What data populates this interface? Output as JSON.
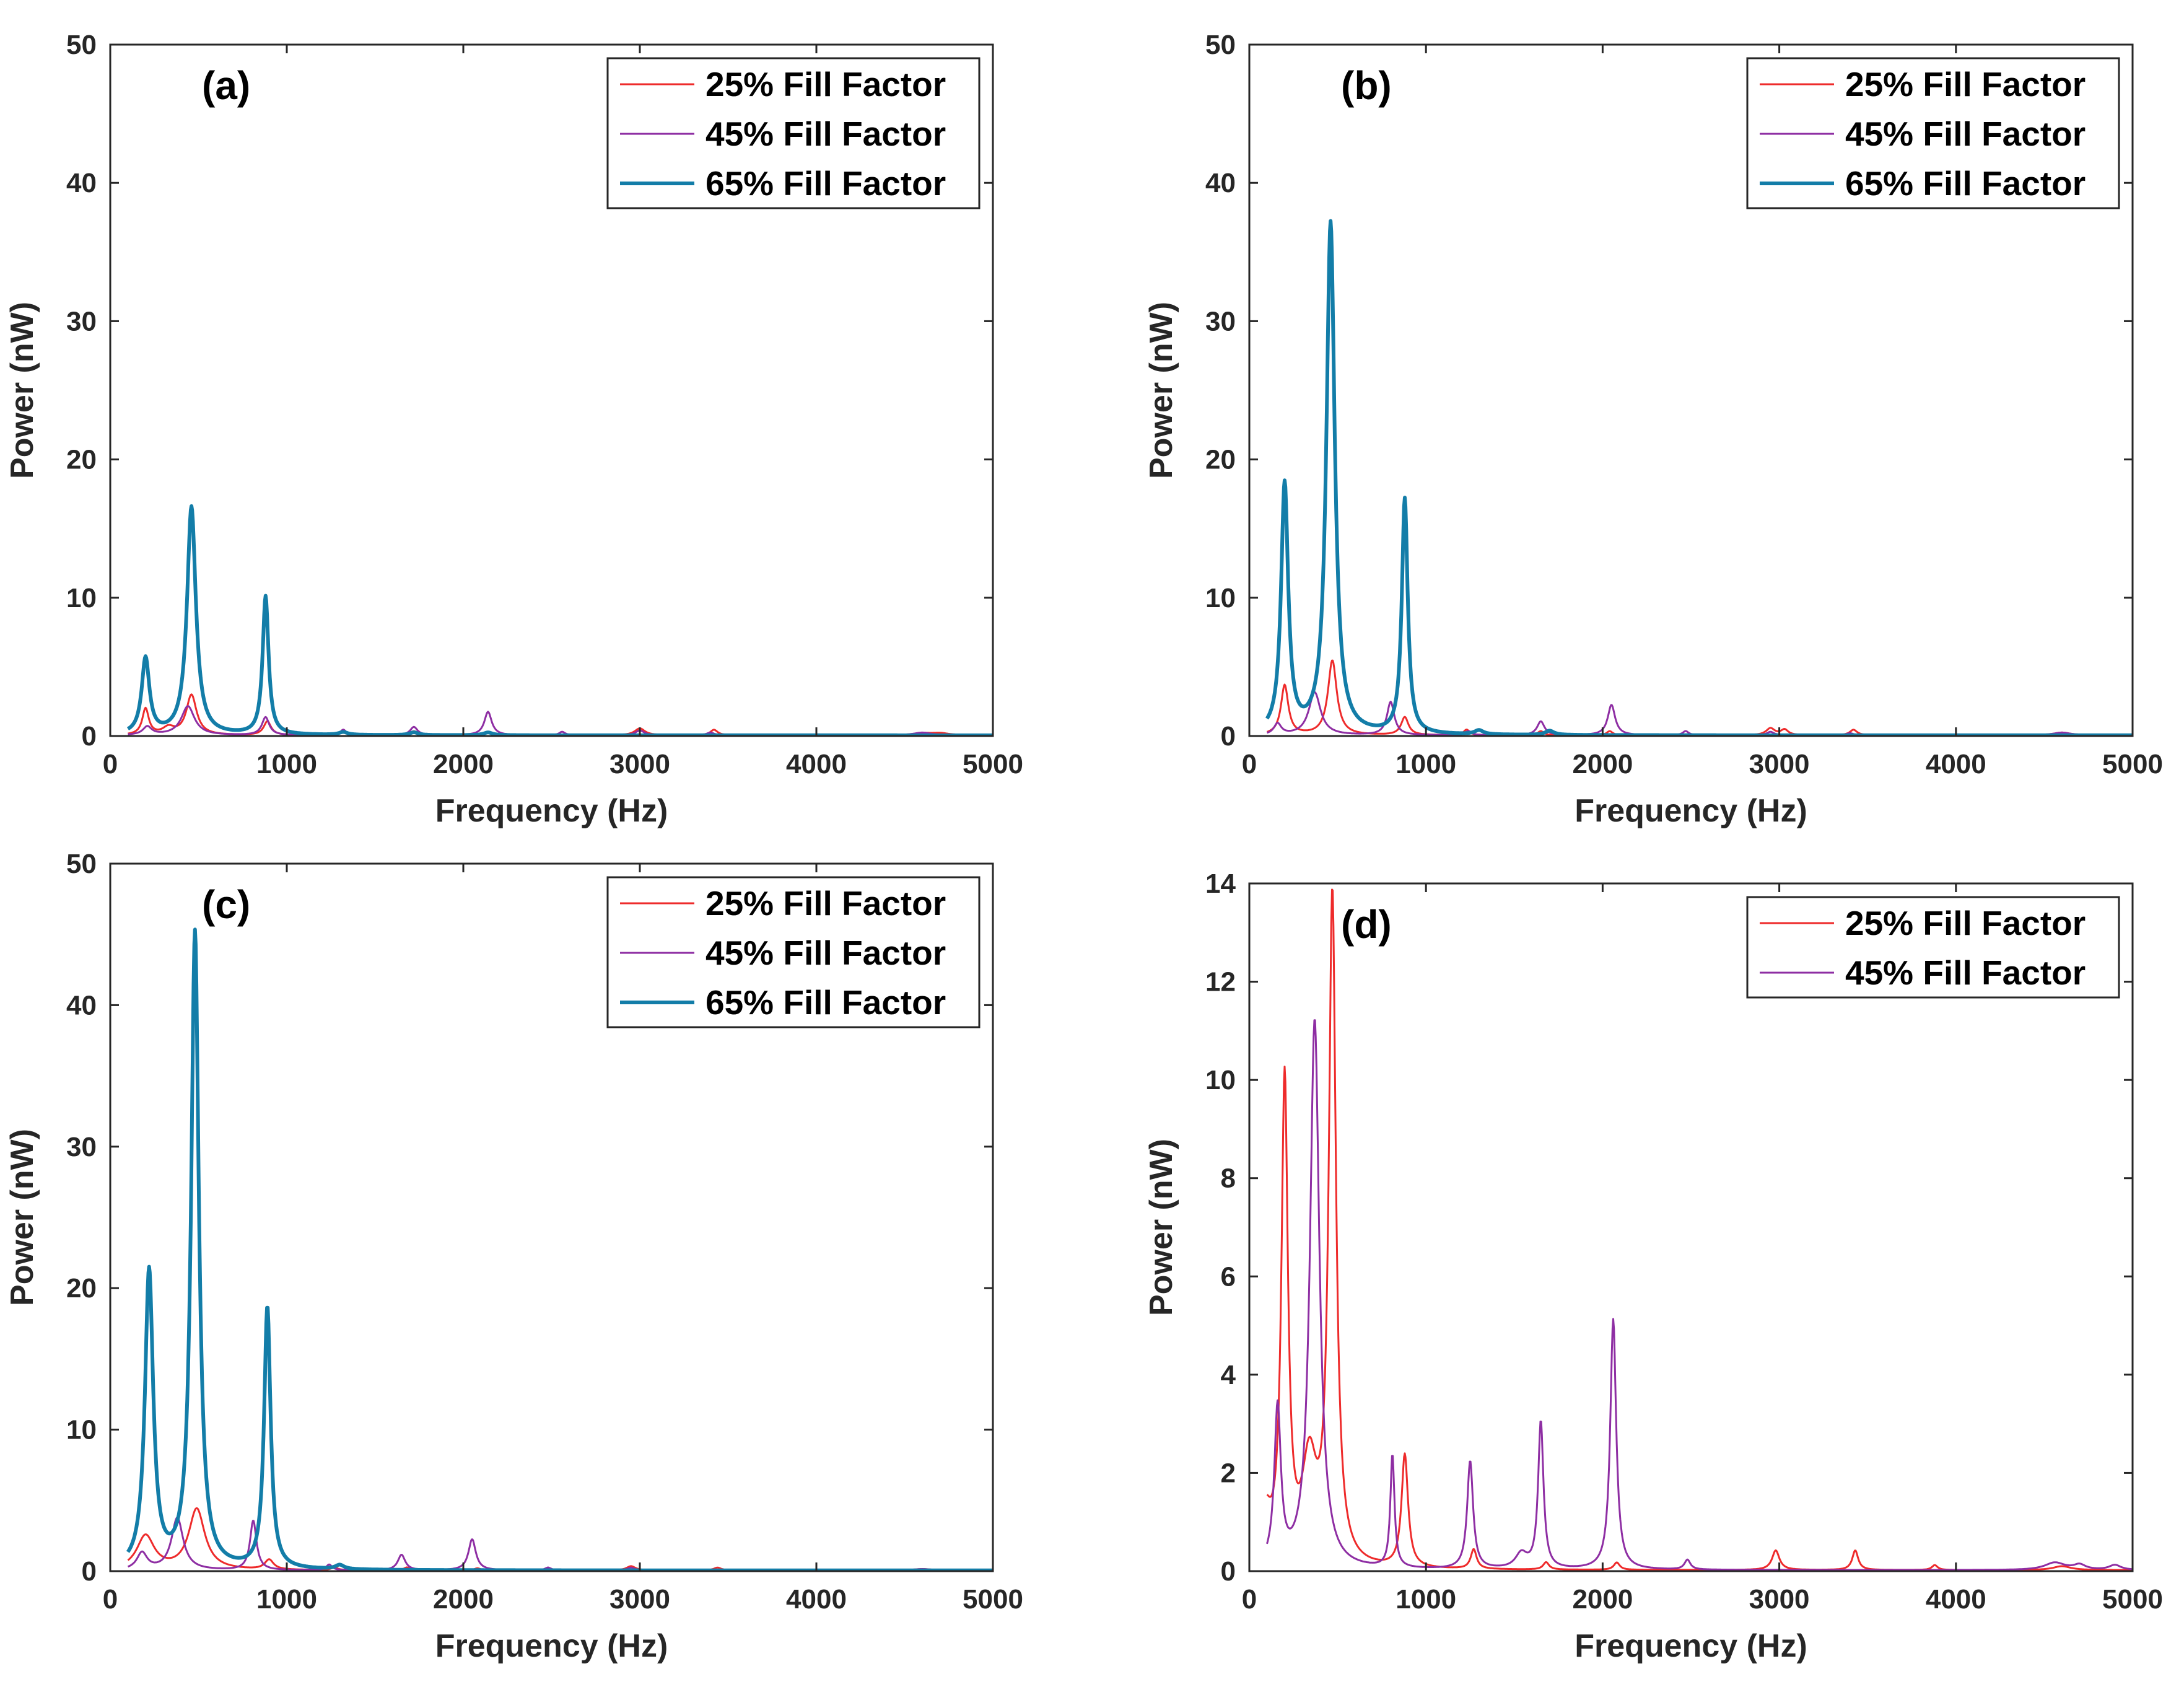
{
  "colors": {
    "ff25": "#ee2b2b",
    "ff45": "#8e2ea3",
    "ff65": "#137da8",
    "axis": "#262626",
    "text": "#000000",
    "background": "#ffffff"
  },
  "chart_data": [
    {
      "type": "line",
      "panel_label": "(a)",
      "xlabel": "Frequency (Hz)",
      "ylabel": "Power (nW)",
      "xlim": [
        0,
        5000
      ],
      "ylim": [
        0,
        50
      ],
      "xticks": [
        0,
        1000,
        2000,
        3000,
        4000,
        5000
      ],
      "yticks": [
        0,
        10,
        20,
        30,
        40,
        50
      ],
      "legend_position": "top-right",
      "series": [
        {
          "name": "25% Fill Factor",
          "color_key": "ff25",
          "width": 3,
          "baseline": 0.05,
          "peaks": [
            [
              200,
              1.9,
              22
            ],
            [
              330,
              0.5,
              40
            ],
            [
              460,
              2.9,
              35
            ],
            [
              890,
              1.0,
              25
            ],
            [
              1320,
              0.3,
              20
            ],
            [
              1720,
              0.3,
              25
            ],
            [
              2140,
              0.2,
              25
            ],
            [
              3000,
              0.5,
              35
            ],
            [
              3420,
              0.4,
              25
            ],
            [
              4600,
              0.15,
              60
            ],
            [
              4700,
              0.15,
              60
            ]
          ]
        },
        {
          "name": "45% Fill Factor",
          "color_key": "ff45",
          "width": 3,
          "baseline": 0.05,
          "peaks": [
            [
              210,
              0.6,
              30
            ],
            [
              440,
              2.1,
              45
            ],
            [
              880,
              1.3,
              25
            ],
            [
              1320,
              0.4,
              20
            ],
            [
              1720,
              0.6,
              25
            ],
            [
              2140,
              1.7,
              25
            ],
            [
              2560,
              0.25,
              20
            ],
            [
              3000,
              0.35,
              30
            ],
            [
              3400,
              0.2,
              25
            ],
            [
              4600,
              0.2,
              60
            ]
          ]
        },
        {
          "name": "65% Fill Factor",
          "color_key": "ff65",
          "width": 6,
          "baseline": 0.05,
          "peaks": [
            [
              200,
              5.5,
              26
            ],
            [
              460,
              16.5,
              30
            ],
            [
              880,
              10.0,
              20
            ],
            [
              1320,
              0.2,
              30
            ],
            [
              1720,
              0.2,
              30
            ],
            [
              2140,
              0.2,
              30
            ]
          ]
        }
      ]
    },
    {
      "type": "line",
      "panel_label": "(b)",
      "xlabel": "Frequency (Hz)",
      "ylabel": "Power (nW)",
      "xlim": [
        0,
        5000
      ],
      "ylim": [
        0,
        50
      ],
      "xticks": [
        0,
        1000,
        2000,
        3000,
        4000,
        5000
      ],
      "yticks": [
        0,
        10,
        20,
        30,
        40,
        50
      ],
      "legend_position": "top-right",
      "series": [
        {
          "name": "25% Fill Factor",
          "color_key": "ff25",
          "width": 3,
          "baseline": 0.05,
          "peaks": [
            [
              200,
              3.6,
              25
            ],
            [
              470,
              5.4,
              30
            ],
            [
              880,
              1.3,
              25
            ],
            [
              1230,
              0.4,
              20
            ],
            [
              1650,
              0.3,
              20
            ],
            [
              2040,
              0.3,
              20
            ],
            [
              2950,
              0.5,
              30
            ],
            [
              3030,
              0.4,
              25
            ],
            [
              3420,
              0.4,
              25
            ],
            [
              4600,
              0.2,
              60
            ]
          ]
        },
        {
          "name": "45% Fill Factor",
          "color_key": "ff45",
          "width": 3,
          "baseline": 0.05,
          "peaks": [
            [
              160,
              0.8,
              25
            ],
            [
              370,
              3.1,
              40
            ],
            [
              800,
              2.4,
              25
            ],
            [
              1240,
              0.3,
              20
            ],
            [
              1650,
              1.0,
              25
            ],
            [
              2050,
              2.2,
              25
            ],
            [
              2470,
              0.3,
              20
            ],
            [
              2950,
              0.25,
              25
            ],
            [
              3400,
              0.15,
              25
            ],
            [
              4600,
              0.2,
              60
            ]
          ]
        },
        {
          "name": "65% Fill Factor",
          "color_key": "ff65",
          "width": 6,
          "baseline": 0.05,
          "peaks": [
            [
              200,
              18.0,
              24
            ],
            [
              460,
              37.0,
              28
            ],
            [
              880,
              17.0,
              20
            ],
            [
              1300,
              0.3,
              30
            ],
            [
              1700,
              0.3,
              30
            ]
          ]
        }
      ]
    },
    {
      "type": "line",
      "panel_label": "(c)",
      "xlabel": "Frequency (Hz)",
      "ylabel": "Power (nW)",
      "xlim": [
        0,
        5000
      ],
      "ylim": [
        0,
        50
      ],
      "xticks": [
        0,
        1000,
        2000,
        3000,
        4000,
        5000
      ],
      "yticks": [
        0,
        10,
        20,
        30,
        40,
        50
      ],
      "legend_position": "top-right",
      "series": [
        {
          "name": "25% Fill Factor",
          "color_key": "ff25",
          "width": 3,
          "baseline": 0.05,
          "peaks": [
            [
              200,
              2.4,
              60
            ],
            [
              490,
              4.3,
              55
            ],
            [
              900,
              0.7,
              30
            ],
            [
              1270,
              0.2,
              20
            ],
            [
              1680,
              0.2,
              20
            ],
            [
              2080,
              0.15,
              20
            ],
            [
              2950,
              0.3,
              30
            ],
            [
              3440,
              0.2,
              25
            ],
            [
              4600,
              0.1,
              60
            ]
          ]
        },
        {
          "name": "45% Fill Factor",
          "color_key": "ff45",
          "width": 3,
          "baseline": 0.05,
          "peaks": [
            [
              180,
              1.2,
              35
            ],
            [
              380,
              3.7,
              40
            ],
            [
              810,
              3.5,
              22
            ],
            [
              1240,
              0.4,
              20
            ],
            [
              1650,
              1.1,
              25
            ],
            [
              2050,
              2.2,
              25
            ],
            [
              2480,
              0.2,
              20
            ],
            [
              2950,
              0.2,
              25
            ],
            [
              4600,
              0.1,
              60
            ]
          ]
        },
        {
          "name": "65% Fill Factor",
          "color_key": "ff65",
          "width": 6,
          "baseline": 0.05,
          "peaks": [
            [
              220,
              21.0,
              28
            ],
            [
              480,
              45.0,
              26
            ],
            [
              890,
              18.5,
              22
            ],
            [
              1300,
              0.3,
              30
            ]
          ]
        }
      ]
    },
    {
      "type": "line",
      "panel_label": "(d)",
      "xlabel": "Frequency (Hz)",
      "ylabel": "Power (nW)",
      "xlim": [
        0,
        5000
      ],
      "ylim": [
        0,
        14
      ],
      "xticks": [
        0,
        1000,
        2000,
        3000,
        4000,
        5000
      ],
      "yticks": [
        0,
        2,
        4,
        6,
        8,
        10,
        12,
        14
      ],
      "legend_position": "top-right",
      "series": [
        {
          "name": "25% Fill Factor",
          "color_key": "ff25",
          "width": 3,
          "baseline": 0.02,
          "peaks": [
            [
              90,
              1.0,
              40
            ],
            [
              200,
              9.8,
              22
            ],
            [
              340,
              2.0,
              50
            ],
            [
              470,
              13.6,
              24
            ],
            [
              880,
              2.3,
              22
            ],
            [
              1270,
              0.4,
              20
            ],
            [
              1680,
              0.15,
              20
            ],
            [
              2080,
              0.15,
              20
            ],
            [
              2980,
              0.4,
              25
            ],
            [
              3430,
              0.4,
              20
            ],
            [
              3880,
              0.1,
              20
            ],
            [
              4600,
              0.08,
              60
            ]
          ]
        },
        {
          "name": "45% Fill Factor",
          "color_key": "ff45",
          "width": 3,
          "baseline": 0.02,
          "peaks": [
            [
              160,
              3.2,
              22
            ],
            [
              370,
              11.2,
              32
            ],
            [
              810,
              2.3,
              14
            ],
            [
              1250,
              2.2,
              20
            ],
            [
              1540,
              0.3,
              40
            ],
            [
              1650,
              3.0,
              18
            ],
            [
              2060,
              5.1,
              20
            ],
            [
              2480,
              0.2,
              20
            ],
            [
              4560,
              0.15,
              70
            ],
            [
              4700,
              0.1,
              40
            ],
            [
              4900,
              0.1,
              40
            ]
          ]
        }
      ]
    }
  ]
}
